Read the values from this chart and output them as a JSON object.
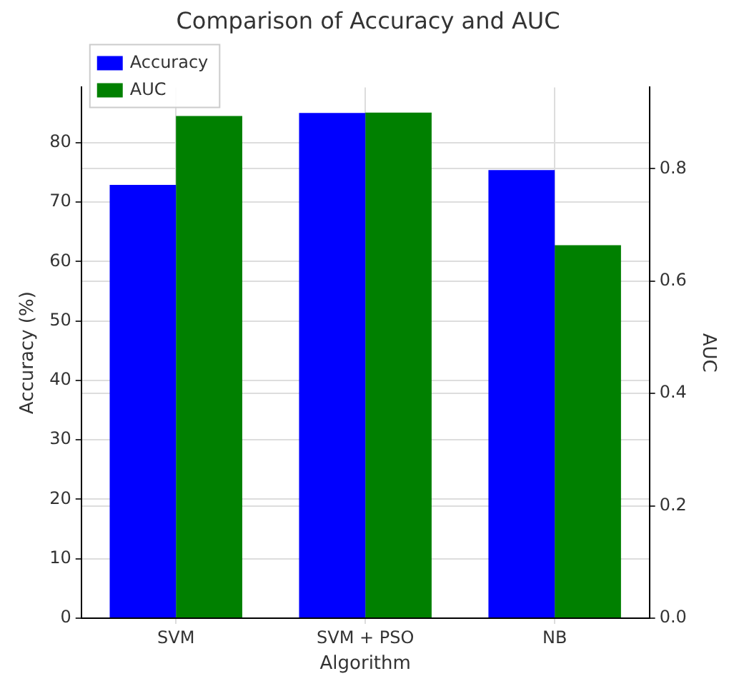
{
  "chart_data": {
    "type": "bar",
    "title": "Comparison of Accuracy and AUC",
    "xlabel": "Algorithm",
    "ylabel": "Accuracy (%)",
    "y2label": "AUC",
    "categories": [
      "SVM",
      "SVM + PSO",
      "NB"
    ],
    "series": [
      {
        "name": "Accuracy",
        "color": "#0000ff",
        "values": [
          72.9,
          85.0,
          75.4
        ]
      },
      {
        "name": "AUC",
        "color": "#008000",
        "values": [
          0.894,
          0.9,
          0.664
        ],
        "axis": "y2"
      }
    ],
    "ylim": [
      0,
      89.3
    ],
    "yticks": [
      0,
      10,
      20,
      30,
      40,
      50,
      60,
      70,
      80
    ],
    "y2lim": [
      0,
      0.945
    ],
    "y2ticks": [
      {
        "value": 0,
        "label": "0.0"
      },
      {
        "value": 0.2,
        "label": "0.2"
      },
      {
        "value": 0.4,
        "label": "0.4"
      },
      {
        "value": 0.6,
        "label": "0.6"
      },
      {
        "value": 0.8,
        "label": "0.8"
      }
    ],
    "grid": true,
    "legend": "top left"
  }
}
